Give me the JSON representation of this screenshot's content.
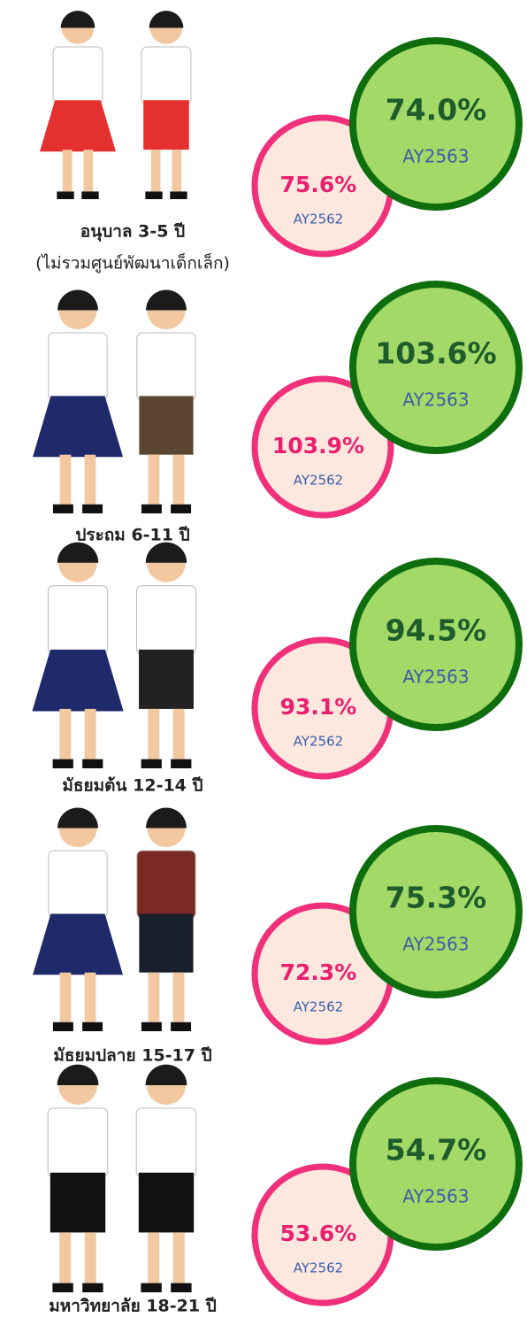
{
  "rows": [
    {
      "label": "อนุบาล 3-5 ปี",
      "sublabel": "(ไม่รวมศูนย์พัฒนาเด็กเล็ก)",
      "ay2563": {
        "value": "74.0%",
        "year": "AY2563"
      },
      "ay2562": {
        "value": "75.6%",
        "year": "AY2562"
      }
    },
    {
      "label": "ประถม 6-11 ปี",
      "ay2563": {
        "value": "103.6%",
        "year": "AY2563"
      },
      "ay2562": {
        "value": "103.9%",
        "year": "AY2562"
      }
    },
    {
      "label": "มัธยมต้น 12-14 ปี",
      "ay2563": {
        "value": "94.5%",
        "year": "AY2563"
      },
      "ay2562": {
        "value": "93.1%",
        "year": "AY2562"
      }
    },
    {
      "label": "มัธยมปลาย 15-17 ปี",
      "ay2563": {
        "value": "75.3%",
        "year": "AY2563"
      },
      "ay2562": {
        "value": "72.3%",
        "year": "AY2562"
      }
    },
    {
      "label": "มหาวิทยาลัย 18-21 ปี",
      "ay2563": {
        "value": "54.7%",
        "year": "AY2563"
      },
      "ay2562": {
        "value": "53.6%",
        "year": "AY2562"
      }
    }
  ]
}
